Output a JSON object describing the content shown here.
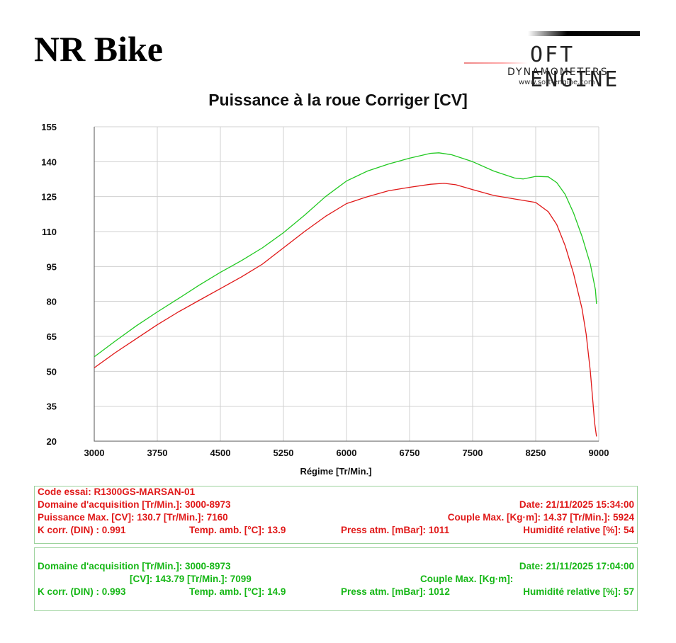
{
  "header": {
    "brand": "NR Bike",
    "logo": {
      "name": "OFT ENGINE",
      "sub": "DYNAMOMETERS",
      "url": "www.soft-engine.com"
    }
  },
  "colors": {
    "run1": "#e01818",
    "run2": "#22c922",
    "grid": "#d0d0d0",
    "axis": "#555555"
  },
  "chart_data": {
    "type": "line",
    "title": "Puissance à la roue Corriger [CV]",
    "xlabel": "Régime [Tr/Min.]",
    "ylabel": "",
    "xlim": [
      3000,
      9000
    ],
    "ylim": [
      20,
      155
    ],
    "xticks": [
      "3000",
      "3750",
      "4500",
      "5250",
      "6000",
      "6750",
      "7500",
      "8250",
      "9000"
    ],
    "yticks": [
      "155",
      "140",
      "125",
      "110",
      "95",
      "80",
      "65",
      "50",
      "35",
      "20"
    ],
    "grid": true,
    "legend": "none",
    "series": [
      {
        "color": "#22c922",
        "x": [
          3000,
          3250,
          3500,
          3750,
          4000,
          4250,
          4500,
          4750,
          5000,
          5250,
          5500,
          5750,
          6000,
          6250,
          6500,
          6750,
          7000,
          7099,
          7250,
          7500,
          7750,
          8000,
          8100,
          8250,
          8400,
          8500,
          8600,
          8700,
          8800,
          8900,
          8960,
          8973
        ],
        "y": [
          56.2,
          63,
          69.5,
          75.5,
          81.2,
          87,
          92.5,
          97.5,
          103,
          109.5,
          117,
          125,
          131.7,
          136,
          139,
          141.5,
          143.6,
          143.8,
          143,
          140,
          136,
          133,
          132.6,
          133.7,
          133.5,
          131,
          126,
          118,
          108,
          96,
          85,
          79
        ]
      },
      {
        "color": "#e01818",
        "x": [
          3000,
          3250,
          3500,
          3750,
          4000,
          4250,
          4500,
          4750,
          5000,
          5250,
          5500,
          5750,
          6000,
          6250,
          6500,
          6750,
          7000,
          7160,
          7300,
          7500,
          7750,
          8000,
          8250,
          8400,
          8500,
          8600,
          8700,
          8800,
          8850,
          8900,
          8930,
          8950,
          8973
        ],
        "y": [
          51.5,
          58,
          64,
          70,
          75.5,
          80.5,
          85.5,
          90.5,
          96,
          103,
          110,
          116.5,
          122,
          125,
          127.5,
          129,
          130.3,
          130.7,
          130.1,
          128,
          125.5,
          124,
          122.5,
          118.5,
          113,
          104,
          92,
          77,
          66,
          50,
          37,
          28,
          22
        ]
      }
    ]
  },
  "run1": {
    "code": "Code essai: R1300GS-MARSAN-01",
    "domaine": "Domaine d'acquisition [Tr/Min.]: 3000-8973",
    "date": "Date: 21/11/2025   15:34:00",
    "puissance": "Puissance Max. [CV]: 130.7   [Tr/Min.]: 7160",
    "couple": "Couple Max. [Kg·m]: 14.37   [Tr/Min.]: 5924",
    "kcorr": "K corr. (DIN) : 0.991",
    "temp": "Temp. amb. [°C]: 13.9",
    "press": "Press atm. [mBar]: 1011",
    "hum": "Humidité relative [%]: 54"
  },
  "run2": {
    "domaine": "Domaine d'acquisition [Tr/Min.]: 3000-8973",
    "date": "Date: 21/11/2025   17:04:00",
    "puissance": "[CV]: 143.79   [Tr/Min.]: 7099",
    "couple": "Couple Max. [Kg·m]:",
    "kcorr": "K corr. (DIN) : 0.993",
    "temp": "Temp. amb. [°C]: 14.9",
    "press": "Press atm. [mBar]: 1012",
    "hum": "Humidité relative [%]: 57"
  }
}
